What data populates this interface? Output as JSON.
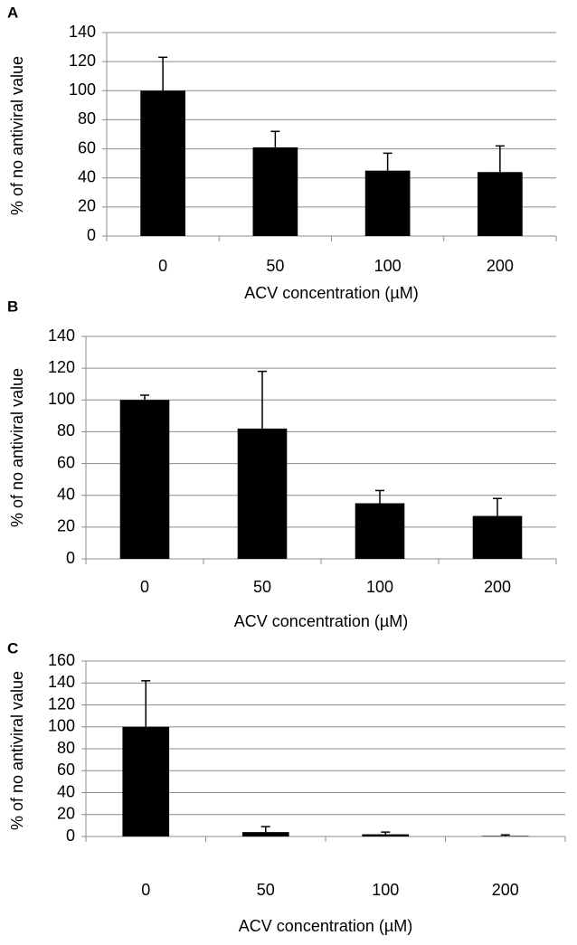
{
  "chart_data": [
    {
      "type": "bar",
      "panel": "A",
      "x_label": "ACV concentration (µM)",
      "y_label": "% of no antiviral value",
      "categories": [
        "0",
        "50",
        "100",
        "200"
      ],
      "values": [
        100,
        61,
        45,
        44
      ],
      "errors": [
        23,
        11,
        12,
        18
      ],
      "color": "#000000",
      "ylim": [
        0,
        140
      ],
      "yticks": [
        0,
        20,
        40,
        60,
        80,
        100,
        120,
        140
      ],
      "grid": true
    },
    {
      "type": "bar",
      "panel": "B",
      "x_label": "ACV concentration (µM)",
      "y_label": "% of no antiviral value",
      "categories": [
        "0",
        "50",
        "100",
        "200"
      ],
      "values": [
        100,
        82,
        35,
        27
      ],
      "errors": [
        3,
        36,
        8,
        11
      ],
      "color": "#000000",
      "ylim": [
        0,
        140
      ],
      "yticks": [
        0,
        20,
        40,
        60,
        80,
        100,
        120,
        140
      ],
      "grid": true
    },
    {
      "type": "bar",
      "panel": "C",
      "x_label": "ACV concentration (µM)",
      "y_label": "% of no antiviral value",
      "categories": [
        "0",
        "50",
        "100",
        "200"
      ],
      "values": [
        100,
        4,
        2,
        0.5
      ],
      "errors": [
        42,
        5,
        2,
        1
      ],
      "color": "#000000",
      "ylim": [
        0,
        160
      ],
      "yticks": [
        0,
        20,
        40,
        60,
        80,
        100,
        120,
        140,
        160
      ],
      "grid": true
    }
  ]
}
